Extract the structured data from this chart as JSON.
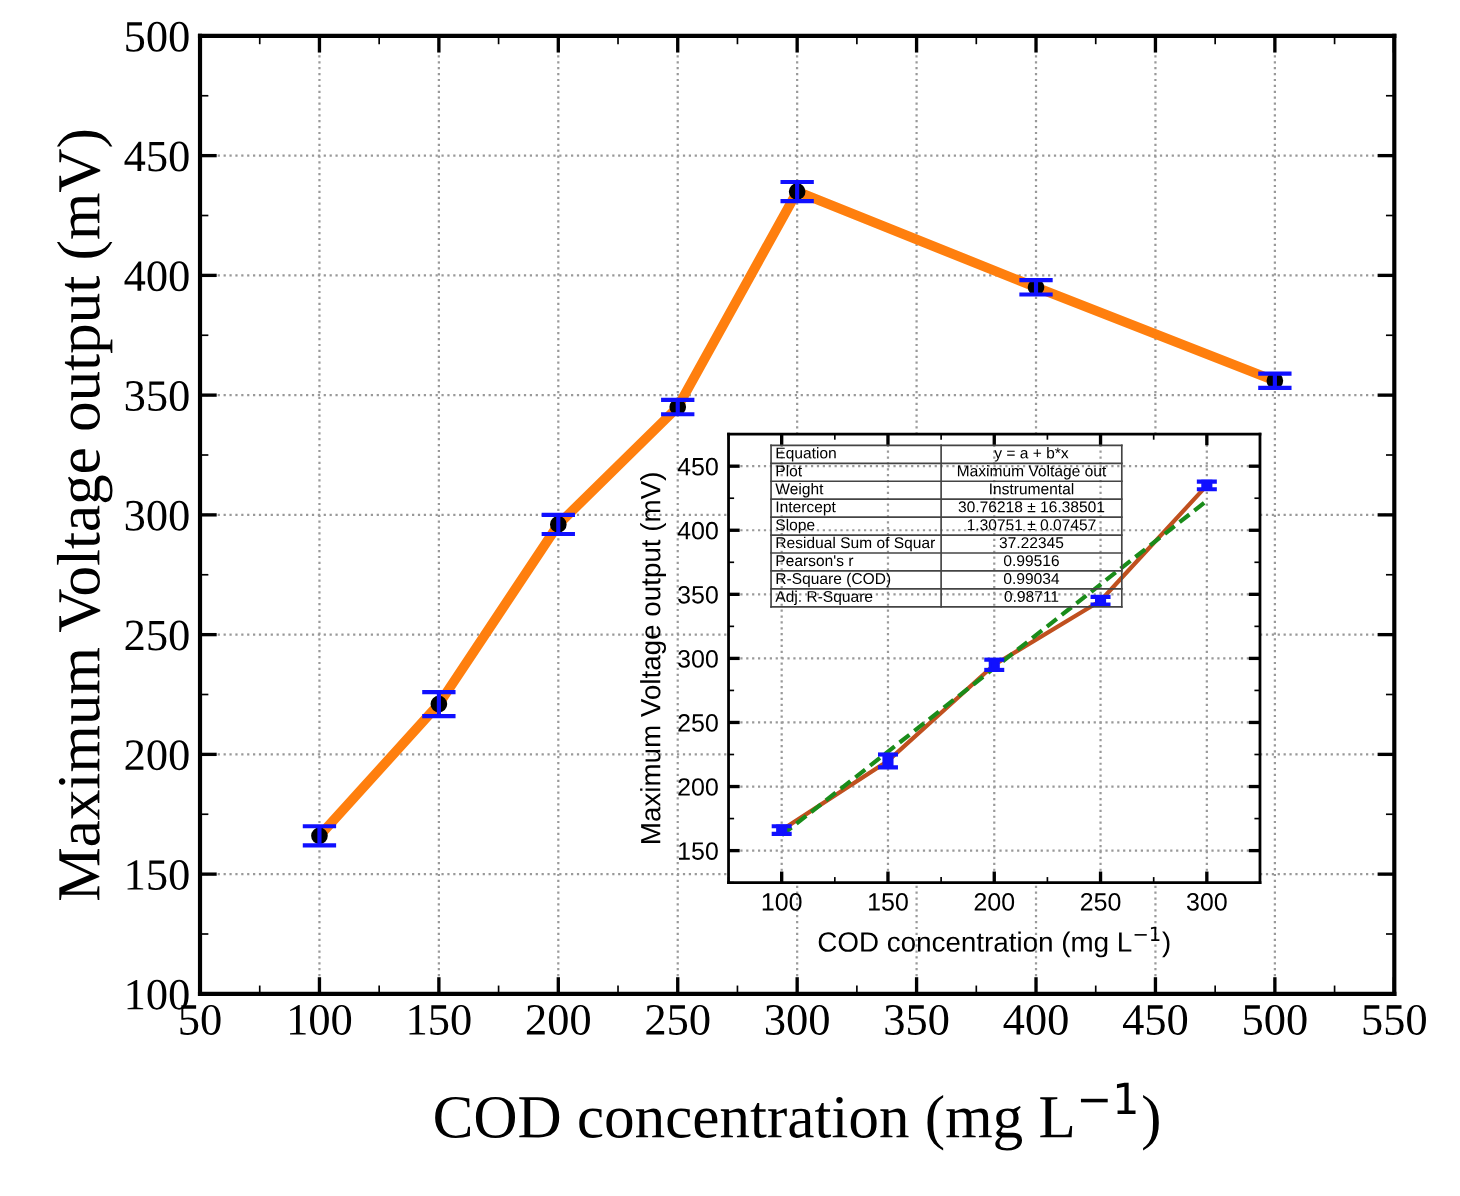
{
  "chart_data": [
    {
      "type": "line",
      "xlabel": "COD concentration (mg L$^{−1}$)",
      "ylabel": "Maximum Voltage output (mV)",
      "x": [
        100,
        150,
        200,
        250,
        300,
        400,
        500
      ],
      "series": [
        {
          "color": "#ff7f0e",
          "values": [
            166,
            221,
            296,
            345,
            435,
            395,
            356
          ],
          "errors": [
            4,
            5,
            4,
            3,
            4,
            3,
            3
          ],
          "marker": "circle"
        }
      ],
      "xlim": [
        50,
        550
      ],
      "xticks": [
        50,
        100,
        150,
        200,
        250,
        300,
        350,
        400,
        450,
        500,
        550
      ],
      "ylim": [
        100,
        500
      ],
      "yticks": [
        100,
        150,
        200,
        250,
        300,
        350,
        400,
        450,
        500
      ],
      "grid": true,
      "line_style": "solid"
    },
    {
      "type": "line",
      "xlabel": "COD concentration (mg L$^{−1}$)",
      "ylabel": "Maximum Voltage output (mV)",
      "x": [
        100,
        150,
        200,
        250,
        300
      ],
      "series": [
        {
          "color": "#c0501f",
          "values": [
            166,
            220,
            295,
            345,
            435
          ],
          "errors": [
            3,
            5,
            4,
            3,
            3
          ],
          "marker": "square",
          "line_style": "solid"
        },
        {
          "type": "line",
          "color": "#1a8c1a",
          "x": [
            100,
            300
          ],
          "values": [
            162,
            423
          ],
          "marker": "none",
          "line_style": "dashed"
        }
      ],
      "xlim": [
        75,
        325
      ],
      "xticks": [
        100,
        150,
        200,
        250,
        300
      ],
      "ylim": [
        125,
        475
      ],
      "yticks": [
        150,
        200,
        250,
        300,
        350,
        400,
        450
      ],
      "grid": true,
      "annotations": [
        "Equation",
        "y = a + b*x",
        "Plot",
        "Maximum Voltage out",
        "Weight",
        "Instrumental",
        "Intercept",
        "30.76218 ± 16.38501",
        "Slope",
        "1.30751 ± 0.07457",
        "Residual Sum of Squar",
        "37.22345",
        "Pearson's r",
        "0.99516",
        "R-Square (COD)",
        "0.99034",
        "Adj. R-Square",
        "0.98711"
      ]
    }
  ]
}
